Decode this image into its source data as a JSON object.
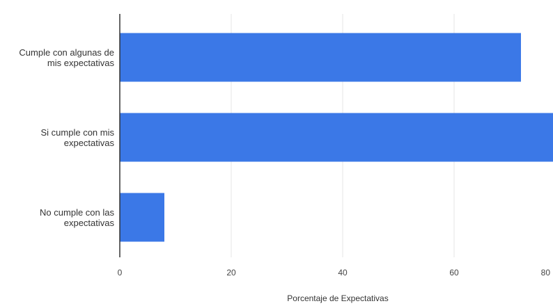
{
  "chart_data": {
    "type": "bar",
    "orientation": "horizontal",
    "categories": [
      "Cumple con algunas de mis expectativas",
      "Si cumple con mis expectativas",
      "No cumple con las expectativas"
    ],
    "values": [
      72,
      81,
      8
    ],
    "xlabel": "Porcentaje de Expectativas",
    "ylabel": "",
    "xlim": [
      0,
      80
    ],
    "xticks": [
      0,
      20,
      40,
      60,
      80
    ],
    "xtick_labels": [
      "0",
      "20",
      "40",
      "60",
      "80"
    ],
    "grid": true,
    "legend": "none",
    "colors": {
      "bar": "#3b78e7",
      "grid": "#e6e6e6",
      "axis": "#333333"
    }
  }
}
